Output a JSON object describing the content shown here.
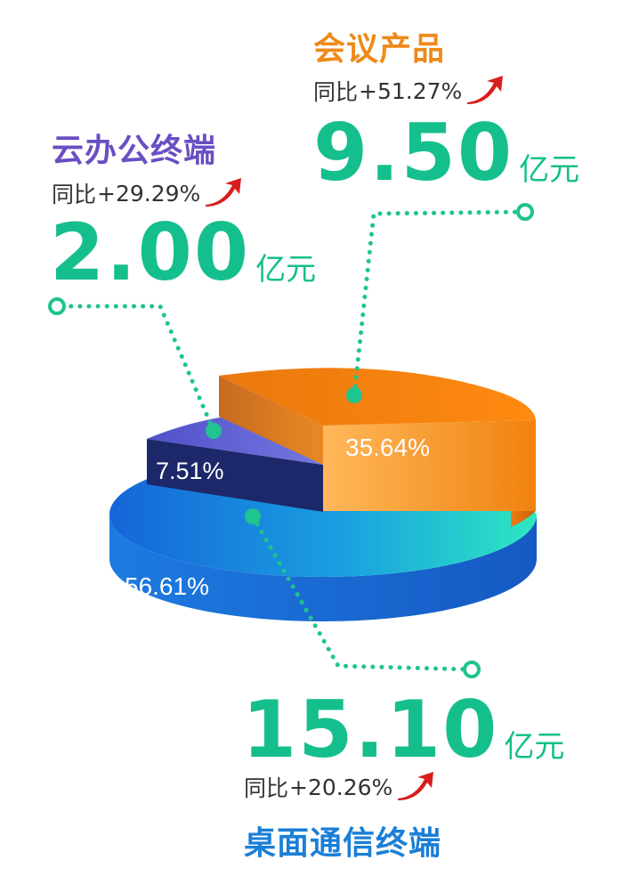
{
  "chart_data": {
    "type": "pie",
    "style": "3d-exploded",
    "unit": "亿元",
    "yoy_prefix": "同比",
    "segments": [
      {
        "name": "会议产品",
        "amount": "9.50",
        "value": 9.5,
        "percent": 35.64,
        "percent_label": "35.64%",
        "yoy": "+51.27%",
        "color": "#f5900f",
        "title_color": "#ee8a1a"
      },
      {
        "name": "云办公终端",
        "amount": "2.00",
        "value": 2.0,
        "percent": 7.51,
        "percent_label": "7.51%",
        "yoy": "+29.29%",
        "color": "#5b5fcf",
        "title_color": "#6a4ec2"
      },
      {
        "name": "桌面通信终端",
        "amount": "15.10",
        "value": 15.1,
        "percent": 56.61,
        "percent_label": "56.61%",
        "yoy": "+20.26%",
        "color": "#1a8fe0",
        "title_color": "#1a7fd6"
      }
    ]
  },
  "colors": {
    "amount": "#15bf8d",
    "dots": "#1fc48e",
    "arrow": "#d81e1e"
  }
}
